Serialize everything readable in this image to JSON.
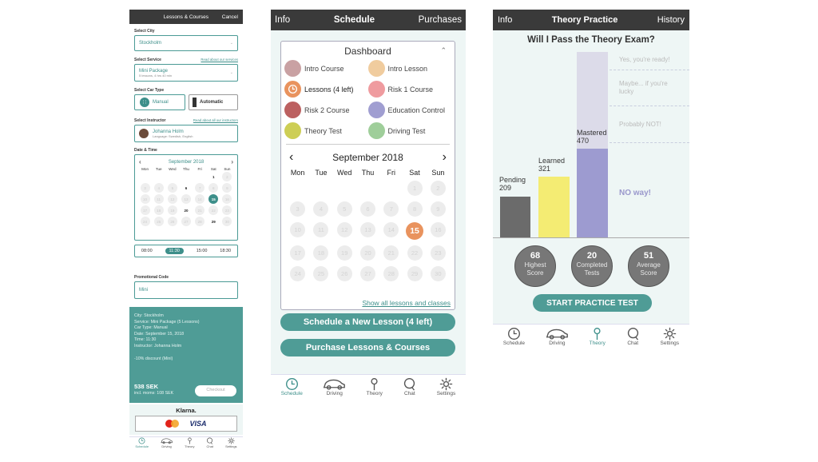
{
  "p1": {
    "title": "Lessons & Courses",
    "cancel": "Cancel",
    "city_label": "Select City",
    "city_value": "Stockholm",
    "service_label": "Select Service",
    "service_link": "Read about our services",
    "service_value": "Mini Package",
    "service_sub": "5 lessons, 4 hrs 40 min",
    "car_label": "Select Car Type",
    "car_manual": "Manual",
    "car_auto": "Automatic",
    "instructor_label": "Select Instructor",
    "instructor_link": "Read about all our instructors",
    "instructor_name": "Johanna Holm",
    "instructor_lang": "Language: Swedish, English",
    "date_label": "Date & Time",
    "month": "September 2018",
    "weekdays": [
      "Mon",
      "Tue",
      "Wed",
      "Thu",
      "Fri",
      "Sat",
      "Sun"
    ],
    "times": [
      "08:00",
      "11:30",
      "15:00",
      "18:30"
    ],
    "promo_label": "Promotional Code",
    "promo_value": "Mini",
    "summary": {
      "city": "City: Stockholm",
      "service": "Service: Mini Package (5 Lessons)",
      "car": "Car Type: Manual",
      "date": "Date: September 15, 2018",
      "time": "Time: 11:30",
      "instructor": "Instructor: Johanna Holm",
      "discount": "-10% discount (Mini)",
      "price": "538 SEK",
      "moms": "incl. moms: 108 SEK",
      "checkout": "Checkout"
    },
    "klarna": "Klarna.",
    "visa": "VISA"
  },
  "p2": {
    "left": "Info",
    "title": "Schedule",
    "right": "Purchases",
    "dashboard": "Dashboard",
    "legend": [
      "Intro Course",
      "Intro Lesson",
      "Lessons (4 left)",
      "Risk 1 Course",
      "Risk 2 Course",
      "Education Control",
      "Theory Test",
      "Driving Test"
    ],
    "legend_colors": [
      "#c9a1a3",
      "#f0cc9e",
      "#e9935e",
      "#ef9b9f",
      "#bc6060",
      "#a09ed1",
      "#cdce55",
      "#9fce9a"
    ],
    "month": "September 2018",
    "weekdays": [
      "Mon",
      "Tue",
      "Wed",
      "Thu",
      "Fri",
      "Sat",
      "Sun"
    ],
    "show_all": "Show all lessons and classes",
    "btn_schedule": "Schedule a New Lesson (4 left)",
    "btn_purchase": "Purchase Lessons & Courses"
  },
  "p3": {
    "left": "Info",
    "title": "Theory Practice",
    "right": "History",
    "question": "Will I Pass the Theory Exam?",
    "bars": [
      {
        "label": "Pending",
        "value": "209"
      },
      {
        "label": "Learned",
        "value": "321"
      },
      {
        "label": "Mastered",
        "value": "470"
      }
    ],
    "zones": [
      "Yes, you're ready!",
      "Maybe... if you're lucky",
      "Probably NOT!",
      "NO way!"
    ],
    "stats": [
      {
        "value": "68",
        "line1": "Highest",
        "line2": "Score"
      },
      {
        "value": "20",
        "line1": "Completed",
        "line2": "Tests"
      },
      {
        "value": "51",
        "line1": "Average",
        "line2": "Score"
      }
    ],
    "start": "START PRACTICE TEST"
  },
  "tabs": [
    "Schedule",
    "Driving",
    "Theory",
    "Chat",
    "Settings"
  ]
}
